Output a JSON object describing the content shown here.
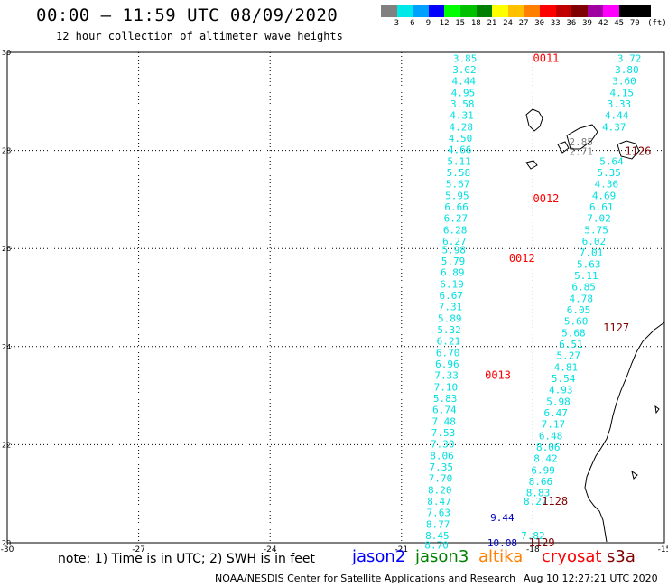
{
  "title": "00:00 – 11:59 UTC 08/09/2020",
  "subtitle": "12 hour collection of altimeter wave heights",
  "colorscale": {
    "unit": "(ft)",
    "labels": [
      "3",
      "6",
      "9",
      "12",
      "15",
      "18",
      "21",
      "24",
      "27",
      "30",
      "33",
      "36",
      "39",
      "42",
      "45",
      "70"
    ],
    "colors": [
      "#808080",
      "#00e8e8",
      "#00a0ff",
      "#0000ff",
      "#00ff00",
      "#00c000",
      "#008000",
      "#ffff00",
      "#ffc000",
      "#ff8000",
      "#ff0000",
      "#c00000",
      "#800000",
      "#a000a0",
      "#ff00ff",
      "#000000",
      "#000000"
    ]
  },
  "axes": {
    "x_ticks": [
      "-30",
      "-27",
      "-24",
      "-21",
      "-18",
      "-15"
    ],
    "y_ticks": [
      "30",
      "28",
      "26",
      "24",
      "22",
      "20"
    ]
  },
  "tracks": [
    {
      "color": "#00e0e0",
      "points": [
        [
          "3.85",
          29.88
        ],
        [
          "3.02",
          29.65
        ],
        [
          "4.44",
          29.42
        ],
        [
          "4.95",
          29.18
        ],
        [
          "3.58",
          28.95
        ],
        [
          "4.31",
          28.72
        ],
        [
          "4.28",
          28.48
        ],
        [
          "4.50",
          28.25
        ],
        [
          "4.66",
          28.02
        ],
        [
          "5.11",
          27.78
        ],
        [
          "5.58",
          27.55
        ],
        [
          "5.67",
          27.32
        ],
        [
          "5.95",
          27.08
        ],
        [
          "6.66",
          26.85
        ],
        [
          "6.27",
          26.62
        ],
        [
          "6.28",
          26.38
        ],
        [
          "6.27",
          26.15
        ],
        [
          "5.98",
          25.98
        ],
        [
          "5.79",
          25.75
        ],
        [
          "6.89",
          25.52
        ],
        [
          "6.19",
          25.28
        ],
        [
          "6.67",
          25.05
        ],
        [
          "7.31",
          24.82
        ],
        [
          "5.89",
          24.58
        ],
        [
          "5.32",
          24.35
        ],
        [
          "6.21",
          24.12
        ],
        [
          "6.70",
          23.88
        ],
        [
          "6.96",
          23.65
        ],
        [
          "7.33",
          23.42
        ],
        [
          "7.10",
          23.18
        ],
        [
          "5.83",
          22.95
        ],
        [
          "6.74",
          22.72
        ],
        [
          "7.48",
          22.48
        ],
        [
          "7.53",
          22.25
        ],
        [
          "7.30",
          22.02
        ],
        [
          "8.06",
          21.78
        ],
        [
          "7.35",
          21.55
        ],
        [
          "7.70",
          21.32
        ],
        [
          "8.20",
          21.08
        ],
        [
          "8.47",
          20.85
        ],
        [
          "7.63",
          20.62
        ],
        [
          "8.77",
          20.38
        ],
        [
          "8.45",
          20.15
        ],
        [
          "8.70",
          19.95
        ]
      ],
      "x_start": -19.55,
      "x_end": -20.2
    },
    {
      "color": "#00e0e0",
      "points": [
        [
          "3.72",
          29.88
        ],
        [
          "3.80",
          29.65
        ],
        [
          "3.60",
          29.42
        ],
        [
          "4.15",
          29.18
        ],
        [
          "3.33",
          28.95
        ],
        [
          "4.44",
          28.72
        ],
        [
          "4.37",
          28.48
        ],
        [
          "5.64",
          27.78
        ],
        [
          "5.35",
          27.55
        ],
        [
          "4.36",
          27.32
        ],
        [
          "4.69",
          27.08
        ],
        [
          "6.61",
          26.85
        ],
        [
          "7.02",
          26.62
        ],
        [
          "5.75",
          26.38
        ],
        [
          "6.02",
          26.15
        ],
        [
          "7.01",
          25.92
        ],
        [
          "5.63",
          25.68
        ],
        [
          "5.11",
          25.45
        ],
        [
          "6.85",
          25.22
        ],
        [
          "4.78",
          24.98
        ],
        [
          "6.05",
          24.75
        ],
        [
          "5.60",
          24.52
        ],
        [
          "5.68",
          24.28
        ],
        [
          "6.51",
          24.05
        ],
        [
          "5.27",
          23.82
        ],
        [
          "4.81",
          23.58
        ],
        [
          "5.54",
          23.35
        ],
        [
          "4.93",
          23.12
        ],
        [
          "5.98",
          22.88
        ],
        [
          "6.47",
          22.65
        ],
        [
          "7.17",
          22.42
        ],
        [
          "6.48",
          22.18
        ],
        [
          "8.06",
          21.95
        ],
        [
          "8.42",
          21.72
        ],
        [
          "6.99",
          21.48
        ],
        [
          "8.66",
          21.25
        ],
        [
          "8.83",
          21.02
        ],
        [
          "8.27",
          20.85
        ],
        [
          "7.82",
          20.15
        ]
      ],
      "x_start": -15.8,
      "x_end": -18.0
    },
    {
      "color": "#0000c0",
      "points": [
        [
          "9.44",
          20.52
        ],
        [
          "10.08",
          20.0
        ]
      ]
    },
    {
      "color": "#808080",
      "points": [
        [
          "2.85",
          28.18
        ],
        [
          "2.71",
          27.98
        ]
      ]
    }
  ],
  "time_labels": [
    {
      "text": "0011",
      "lon": -17.7,
      "lat": 29.88,
      "color": "#ff0000"
    },
    {
      "text": "0012",
      "lon": -17.7,
      "lat": 27.02,
      "color": "#ff0000"
    },
    {
      "text": "0012",
      "lon": -18.25,
      "lat": 25.8,
      "color": "#ff0000"
    },
    {
      "text": "0013",
      "lon": -18.8,
      "lat": 23.42,
      "color": "#ff0000"
    },
    {
      "text": "1126",
      "lon": -15.6,
      "lat": 27.98,
      "color": "#800000"
    },
    {
      "text": "1127",
      "lon": -16.1,
      "lat": 24.38,
      "color": "#800000"
    },
    {
      "text": "1128",
      "lon": -17.5,
      "lat": 20.85,
      "color": "#800000"
    },
    {
      "text": "1129",
      "lon": -17.8,
      "lat": 20.0,
      "color": "#800000"
    }
  ],
  "note": "note: 1) Time is in UTC; 2) SWH is in feet",
  "satellites": [
    {
      "name": "jason2",
      "color": "#0000ff"
    },
    {
      "name": "jason3",
      "color": "#008000"
    },
    {
      "name": "altika",
      "color": "#ff8000"
    },
    {
      "name": "cryosat",
      "color": "#ff0000"
    },
    {
      "name": "s3a",
      "color": "#800000"
    }
  ],
  "footer": "NOAA/NESDIS Center for Satellite Applications and Research",
  "footer_time": "Aug 10 12:27:21 UTC 2020"
}
